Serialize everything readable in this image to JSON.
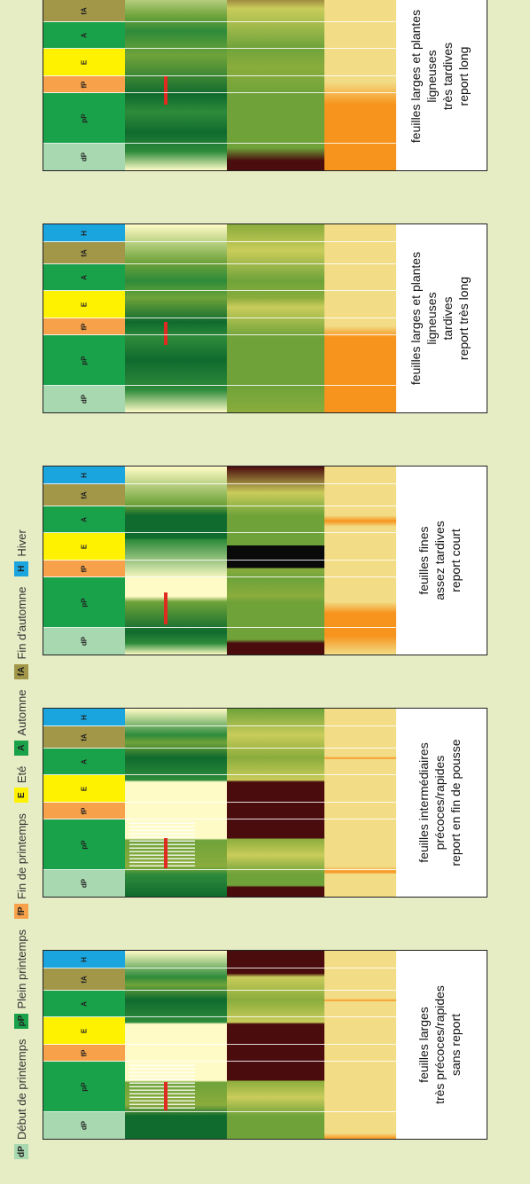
{
  "legend": [
    {
      "key": "dP",
      "label": "Début de printemps",
      "color": "#a8d8b0"
    },
    {
      "key": "pP",
      "label": "Plein printemps",
      "color": "#1aa24a"
    },
    {
      "key": "fP",
      "label": "Fin de printemps",
      "color": "#f7a24b"
    },
    {
      "key": "E",
      "label": "Eté",
      "color": "#fff200"
    },
    {
      "key": "A",
      "label": "Automne",
      "color": "#1aa24a"
    },
    {
      "key": "fA",
      "label": "Fin d'automne",
      "color": "#a29748"
    },
    {
      "key": "H",
      "label": "Hiver",
      "color": "#1aa5de"
    }
  ],
  "season_labels": [
    "dP",
    "pP",
    "fP",
    "E",
    "A",
    "fA",
    "H"
  ],
  "panels": [
    {
      "text": [
        "feuilles larges",
        "très précoces/rapides",
        "sans report"
      ]
    },
    {
      "text": [
        "feuilles intermédiaires",
        "précoces/rapides",
        "report en fin de pousse"
      ]
    },
    {
      "text": [
        "feuilles fines",
        "assez tardives",
        "report court"
      ]
    },
    {
      "text": [
        "feuilles larges et plantes ligneuses",
        "tardives",
        "report très long"
      ]
    },
    {
      "text": [
        "feuilles larges et plantes ligneuses",
        "très tardives",
        "report long"
      ]
    }
  ],
  "colors": {
    "panel_border": "#222222",
    "background": "#e6ecc4",
    "red_marker": "#e02b20"
  }
}
